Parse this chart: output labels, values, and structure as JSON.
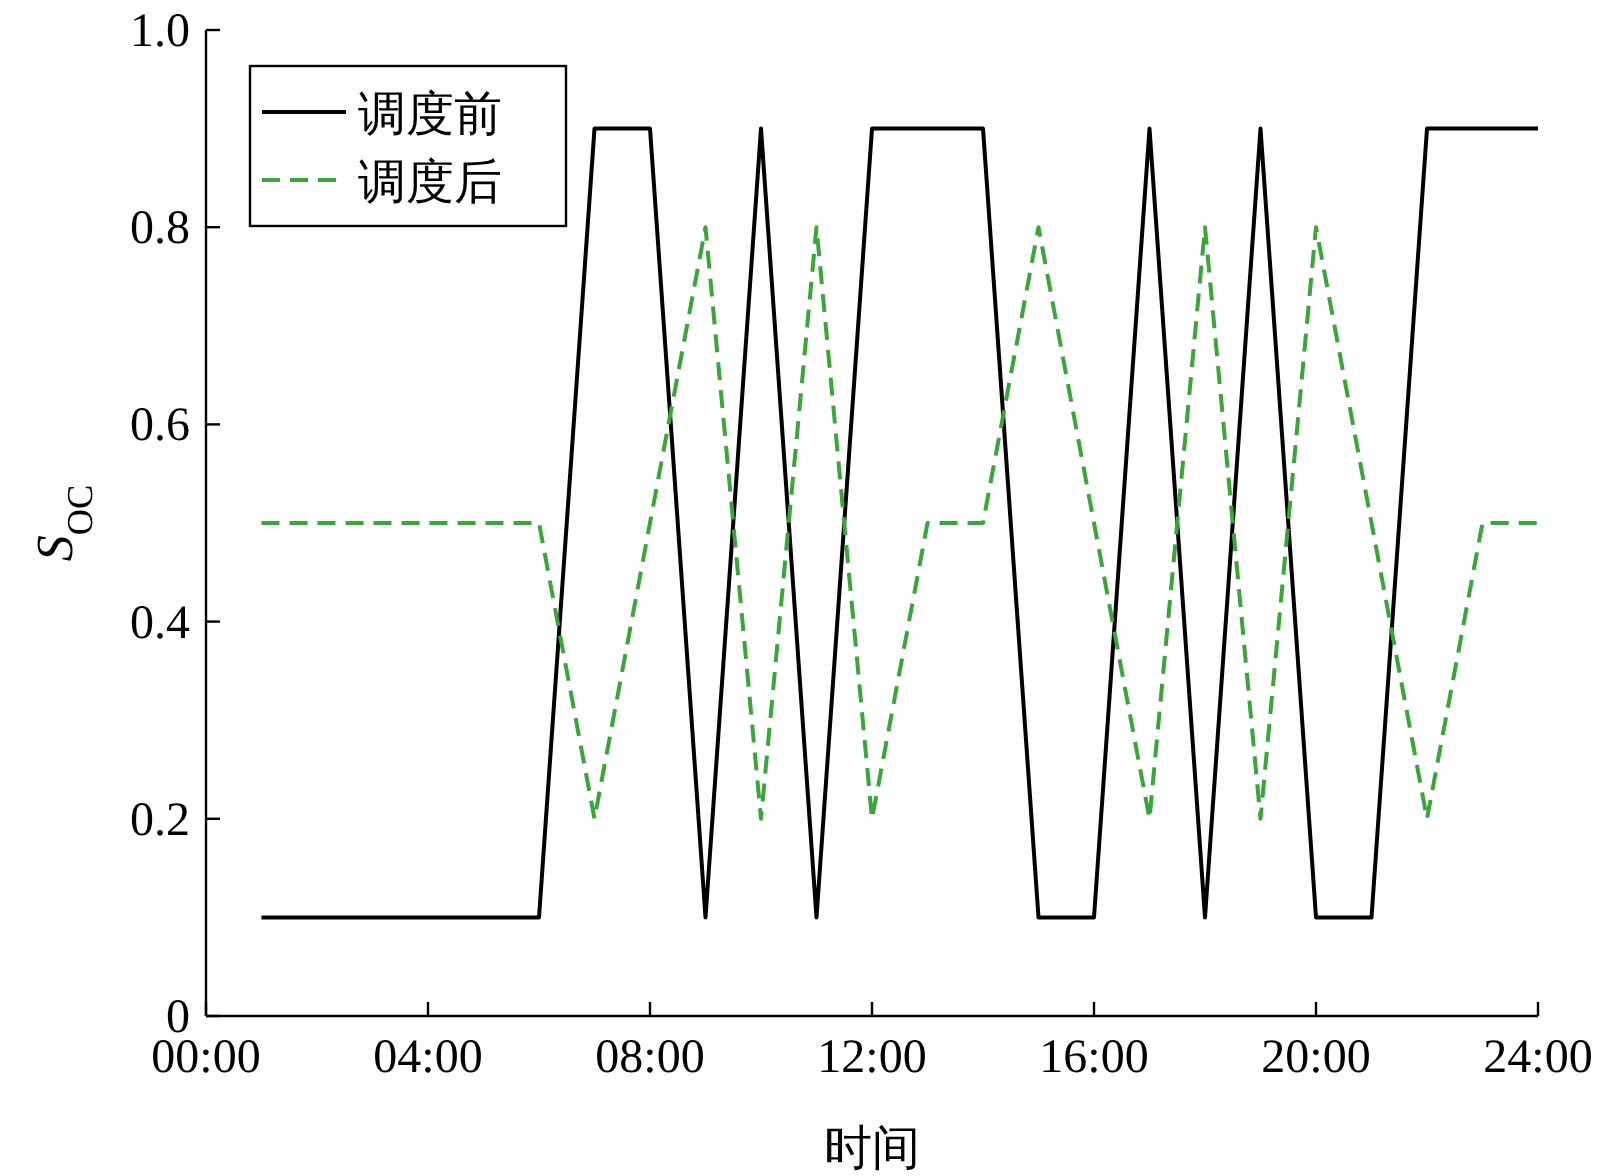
{
  "chart_data": {
    "type": "line",
    "xlabel": "时间",
    "ylabel": "S$_{OC}$",
    "xlim": [
      0,
      24
    ],
    "ylim": [
      0,
      1
    ],
    "xticks": [
      {
        "value": 0,
        "label": "00:00"
      },
      {
        "value": 4,
        "label": "04:00"
      },
      {
        "value": 8,
        "label": "08:00"
      },
      {
        "value": 12,
        "label": "12:00"
      },
      {
        "value": 16,
        "label": "16:00"
      },
      {
        "value": 20,
        "label": "20:00"
      },
      {
        "value": 24,
        "label": "24:00"
      }
    ],
    "yticks": [
      {
        "value": 0,
        "label": "0"
      },
      {
        "value": 0.2,
        "label": "0.2"
      },
      {
        "value": 0.4,
        "label": "0.4"
      },
      {
        "value": 0.6,
        "label": "0.6"
      },
      {
        "value": 0.8,
        "label": "0.8"
      },
      {
        "value": 1,
        "label": "1.0"
      }
    ],
    "grid": false,
    "legend": "top left",
    "marker": "none",
    "series": [
      {
        "name": "调度前",
        "color": "#000000",
        "line_style": "solid",
        "x": [
          1,
          6,
          7,
          8,
          9,
          10,
          11,
          12,
          14,
          15,
          16,
          17,
          18,
          19,
          20,
          21,
          22,
          24
        ],
        "values": [
          0.1,
          0.1,
          0.9,
          0.9,
          0.1,
          0.9,
          0.1,
          0.9,
          0.9,
          0.1,
          0.1,
          0.9,
          0.1,
          0.9,
          0.1,
          0.1,
          0.9,
          0.9
        ]
      },
      {
        "name": "调度后",
        "color": "#3aa63a",
        "line_style": "dashed",
        "x": [
          1,
          6,
          7,
          9,
          10,
          11,
          12,
          13,
          14,
          15,
          17,
          18,
          19,
          20,
          22,
          23,
          24
        ],
        "values": [
          0.5,
          0.5,
          0.2,
          0.8,
          0.2,
          0.8,
          0.2,
          0.5,
          0.5,
          0.8,
          0.2,
          0.8,
          0.2,
          0.8,
          0.2,
          0.5,
          0.5
        ]
      }
    ]
  }
}
